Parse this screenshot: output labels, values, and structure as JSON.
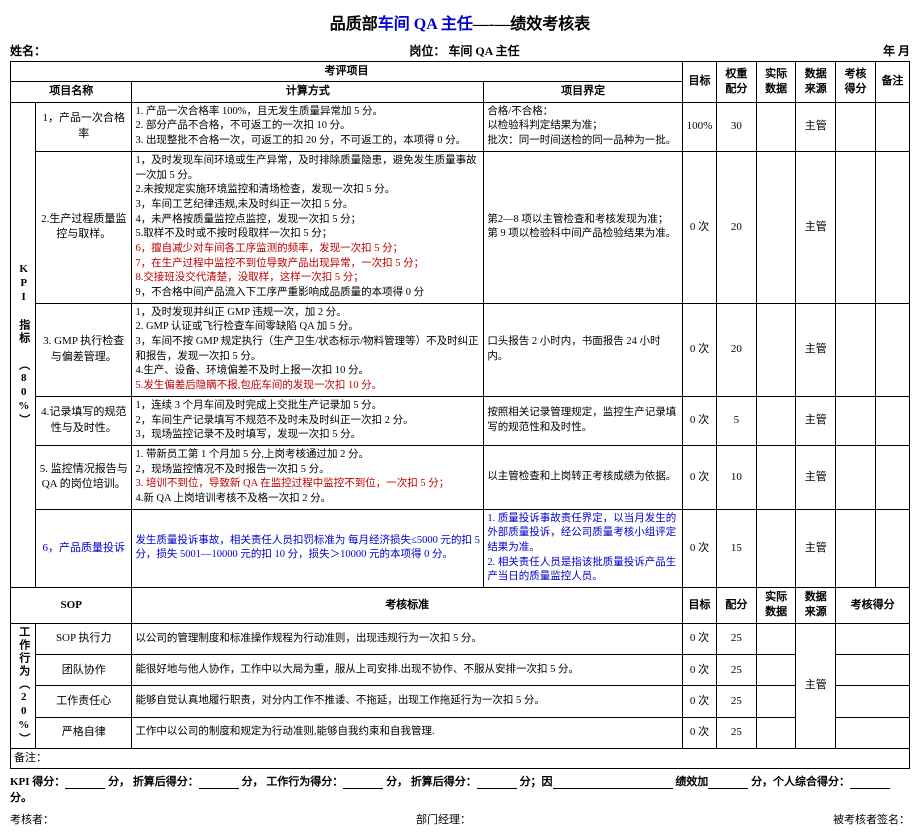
{
  "title_prefix": "品质部",
  "title_blue": "车间 QA 主任",
  "title_suffix": "—-—绩效考核表",
  "header": {
    "name_label": "姓名：",
    "post_label": "岗位：  车间 QA 主任",
    "date_label": "年       月"
  },
  "sec_kpi_label": "KPI 指标 （80%）",
  "sec_work_label": "工作行为（20%）",
  "h": {
    "eval_items": "考评项目",
    "proj_name": "项目名称",
    "calc_method": "计算方式",
    "proj_def": "项目界定",
    "target": "目标",
    "weight": "权重配分",
    "actual": "实际数据",
    "source": "数据来源",
    "score": "考核得分",
    "remark": "备注",
    "sop": "SOP",
    "std": "考核标准",
    "alloc": "配分"
  },
  "kpi": [
    {
      "name": "1，产品一次合格率",
      "calc_lines": [
        {
          "t": "1. 产品一次合格率 100%，且无发生质量异常加 5 分。",
          "c": ""
        },
        {
          "t": "2. 部分产品不合格，不可返工的一次扣 10 分。",
          "c": ""
        },
        {
          "t": "3. 出现整批不合格一次，可返工的扣 20 分，不可返工的，本项得 0 分。",
          "c": ""
        }
      ],
      "def": "合格/不合格：\n以检验科判定结果为准；\n批次：同一时间送检的同一品种为一批。",
      "target": "100%",
      "weight": "30",
      "source": "主管"
    },
    {
      "name": "2.生产过程质量监控与取样。",
      "calc_lines": [
        {
          "t": "1，及时发现车间环境或生产异常，及时排除质量隐患，避免发生质量事故一次加 5 分。",
          "c": ""
        },
        {
          "t": "2.未按规定实施环境监控和清场检查，发现一次扣 5 分。",
          "c": ""
        },
        {
          "t": "3，车间工艺纪律违规,未及时纠正一次扣 5 分。",
          "c": ""
        },
        {
          "t": "4，未严格按质量监控点监控，发现一次扣 5 分；",
          "c": ""
        },
        {
          "t": "5.取样不及时或不按时段取样一次扣 5 分；",
          "c": ""
        },
        {
          "t": "6，擅自减少对车间各工序监测的频率，发现一次扣 5 分；",
          "c": "red"
        },
        {
          "t": "7，在生产过程中监控不到位导致产品出现异常，一次扣 5 分；",
          "c": "red"
        },
        {
          "t": "8.交接班没交代清楚，没取样，这样一次扣 5 分；",
          "c": "red"
        },
        {
          "t": "9，不合格中间产品流入下工序严重影响成品质量的本项得 0 分",
          "c": ""
        }
      ],
      "def": "第2—8 项以主管检查和考核发现为准；\n第 9 项以检验科中间产品检验结果为准。",
      "target": "0 次",
      "weight": "20",
      "source": "主管"
    },
    {
      "name": "3. GMP 执行检查与偏差管理。",
      "calc_lines": [
        {
          "t": "1，及时发现并纠正 GMP 违规一次，加 2 分。",
          "c": ""
        },
        {
          "t": "2. GMP 认证或飞行检查车间零缺陷 QA 加 5 分。",
          "c": ""
        },
        {
          "t": "3，车间不按 GMP 规定执行（生产卫生/状态标示/物料管理等）不及时纠正和报告，发现一次扣 5 分。",
          "c": ""
        },
        {
          "t": "4.生产、设备、环境偏差不及时上报一次扣 10 分。",
          "c": ""
        },
        {
          "t": "5.发生偏差后隐瞒不报,包庇车间的发现一次扣 10 分。",
          "c": "red"
        }
      ],
      "def": "口头报告 2 小时内，书面报告 24 小时内。",
      "target": "0 次",
      "weight": "20",
      "source": "主管"
    },
    {
      "name": "4.记录填写的规范性与及时性。",
      "calc_lines": [
        {
          "t": "1，连续 3 个月车间及时完成上交批生产记录加 5 分。",
          "c": ""
        },
        {
          "t": "2，车间生产记录填写不规范不及时未及时纠正一次扣 2 分。",
          "c": ""
        },
        {
          "t": "3，现场监控记录不及时填写，发现一次扣 5 分。",
          "c": ""
        }
      ],
      "def": "按照相关记录管理规定，监控生产记录填写的规范性和及时性。",
      "target": "0 次",
      "weight": "5",
      "source": "主管"
    },
    {
      "name": "5. 监控情况报告与 QA 的岗位培训。",
      "calc_lines": [
        {
          "t": "1. 带新员工第 1 个月加 5 分,上岗考核通过加 2 分。",
          "c": ""
        },
        {
          "t": "2，现场监控情况不及时报告一次扣 5 分。",
          "c": ""
        },
        {
          "t": "3. 培训不到位，导致新 QA 在监控过程中监控不到位，一次扣 5 分；",
          "c": "red"
        },
        {
          "t": "4.新 QA 上岗培训考核不及格一次扣 2 分。",
          "c": ""
        }
      ],
      "def": "以主管检查和上岗转正考核成绩为依据。",
      "target": "0 次",
      "weight": "10",
      "source": "主管"
    },
    {
      "name": "6，产品质量投诉",
      "name_c": "blue",
      "calc_lines": [
        {
          "t": "发生质量投诉事故，相关责任人员扣罚标准为 每月经济损失≤5000 元的扣 5 分，损失 5001—10000 元的扣 10 分，损失＞10000 元的本项得 0 分。",
          "c": "blue"
        }
      ],
      "def": "1. 质量投诉事故责任界定，以当月发生的外部质量投诉，经公司质量考核小组评定结果为准。\n2. 相关责任人员是指该批质量投诉产品生产当日的质量监控人员。",
      "def_c": "blue",
      "target": "0 次",
      "weight": "15",
      "source": "主管"
    }
  ],
  "work": [
    {
      "name": "SOP 执行力",
      "std": "以公司的管理制度和标准操作规程为行动准则，出现违规行为一次扣 5 分。",
      "target": "0 次",
      "alloc": "25"
    },
    {
      "name": "团队协作",
      "std": "能很好地与他人协作，工作中以大局为重，服从上司安排.出现不协作、不服从安排一次扣 5 分。",
      "target": "0 次",
      "alloc": "25"
    },
    {
      "name": "工作责任心",
      "std": "能够自觉认真地履行职责，对分内工作不推诿、不拖延，出现工作拖延行为一次扣 5 分。",
      "target": "0 次",
      "alloc": "25"
    },
    {
      "name": "严格自律",
      "std": "工作中以公司的制度和规定为行动准则,能够自我约束和自我管理.",
      "target": "0 次",
      "alloc": "25"
    }
  ],
  "work_source": "主管",
  "footer": {
    "note": "备注：",
    "line": {
      "kpi_score": "KPI 得分：",
      "fen": "分，",
      "after_conv": "折算后得分：",
      "work_score": "工作行为得分：",
      "after_conv2": "折算后得分：",
      "because": "分；因",
      "perf_add": "绩效加",
      "personal": "分，个人综合得分：",
      "end": "分。"
    },
    "assessor": "考核者：",
    "dept_mgr": "部门经理：",
    "assessee_sign": "被考核者签名："
  }
}
